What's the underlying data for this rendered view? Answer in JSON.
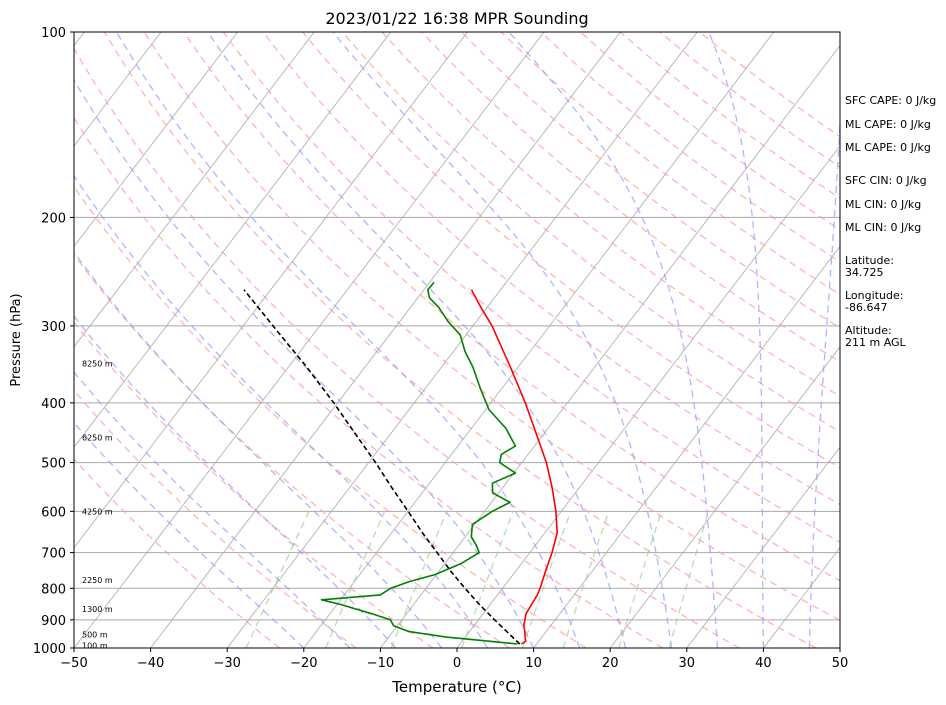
{
  "chart_data": {
    "type": "line",
    "title": "2023/01/22 16:38 MPR Sounding",
    "xlabel": "Temperature (°C)",
    "ylabel": "Pressure (hPa)",
    "xlim": [
      -50,
      50
    ],
    "ylim": [
      1000,
      100
    ],
    "x_scale": "linear",
    "y_scale": "log",
    "skew": true,
    "grid": true,
    "x_ticks": [
      "−50",
      "−40",
      "−30",
      "−20",
      "−10",
      "0",
      "10",
      "20",
      "30",
      "40",
      "50"
    ],
    "y_ticks": [
      "1000",
      "900",
      "800",
      "700",
      "600",
      "500",
      "400",
      "300",
      "200",
      "100"
    ],
    "height_labels": [
      {
        "label": "100 m",
        "pressure": 990
      },
      {
        "label": "500 m",
        "pressure": 950
      },
      {
        "label": "1300 m",
        "pressure": 865
      },
      {
        "label": "2250 m",
        "pressure": 775
      },
      {
        "label": "4250 m",
        "pressure": 600
      },
      {
        "label": "6250 m",
        "pressure": 455
      },
      {
        "label": "8250 m",
        "pressure": 345
      }
    ],
    "series": [
      {
        "color": "#ff0000",
        "values": [
          {
            "p": 985,
            "t": 8.0
          },
          {
            "p": 975,
            "t": 8.3
          },
          {
            "p": 960,
            "t": 7.8
          },
          {
            "p": 940,
            "t": 7.2
          },
          {
            "p": 920,
            "t": 6.5
          },
          {
            "p": 880,
            "t": 5.6
          },
          {
            "p": 850,
            "t": 5.4
          },
          {
            "p": 820,
            "t": 5.2
          },
          {
            "p": 800,
            "t": 4.9
          },
          {
            "p": 750,
            "t": 3.9
          },
          {
            "p": 700,
            "t": 2.9
          },
          {
            "p": 650,
            "t": 1.6
          },
          {
            "p": 600,
            "t": -0.7
          },
          {
            "p": 550,
            "t": -3.5
          },
          {
            "p": 500,
            "t": -6.8
          },
          {
            "p": 450,
            "t": -10.9
          },
          {
            "p": 400,
            "t": -15.5
          },
          {
            "p": 350,
            "t": -21.0
          },
          {
            "p": 300,
            "t": -27.5
          },
          {
            "p": 280,
            "t": -30.8
          },
          {
            "p": 262,
            "t": -33.8
          }
        ]
      },
      {
        "color": "#008000",
        "values": [
          {
            "p": 985,
            "t": 7.5
          },
          {
            "p": 975,
            "t": 3.5
          },
          {
            "p": 960,
            "t": -2.5
          },
          {
            "p": 940,
            "t": -8.0
          },
          {
            "p": 920,
            "t": -10.5
          },
          {
            "p": 900,
            "t": -11.5
          },
          {
            "p": 880,
            "t": -14.5
          },
          {
            "p": 850,
            "t": -19.5
          },
          {
            "p": 835,
            "t": -22.5
          },
          {
            "p": 820,
            "t": -15.3
          },
          {
            "p": 800,
            "t": -14.6
          },
          {
            "p": 780,
            "t": -12.8
          },
          {
            "p": 760,
            "t": -10.2
          },
          {
            "p": 730,
            "t": -7.9
          },
          {
            "p": 700,
            "t": -6.6
          },
          {
            "p": 680,
            "t": -7.8
          },
          {
            "p": 660,
            "t": -9.2
          },
          {
            "p": 630,
            "t": -10.3
          },
          {
            "p": 600,
            "t": -9.0
          },
          {
            "p": 580,
            "t": -7.6
          },
          {
            "p": 560,
            "t": -10.8
          },
          {
            "p": 540,
            "t": -11.8
          },
          {
            "p": 520,
            "t": -9.8
          },
          {
            "p": 500,
            "t": -12.9
          },
          {
            "p": 485,
            "t": -13.5
          },
          {
            "p": 470,
            "t": -12.5
          },
          {
            "p": 440,
            "t": -15.5
          },
          {
            "p": 410,
            "t": -19.6
          },
          {
            "p": 380,
            "t": -22.7
          },
          {
            "p": 350,
            "t": -25.9
          },
          {
            "p": 330,
            "t": -28.5
          },
          {
            "p": 310,
            "t": -30.8
          },
          {
            "p": 295,
            "t": -33.7
          },
          {
            "p": 280,
            "t": -36.3
          },
          {
            "p": 270,
            "t": -38.5
          },
          {
            "p": 262,
            "t": -39.5
          },
          {
            "p": 255,
            "t": -39.4
          }
        ]
      },
      {
        "color": "#000000",
        "dashed": true,
        "values": [
          {
            "p": 985,
            "t": 7.8
          },
          {
            "p": 950,
            "t": 5.5
          },
          {
            "p": 900,
            "t": 2.1
          },
          {
            "p": 850,
            "t": -1.4
          },
          {
            "p": 800,
            "t": -4.9
          },
          {
            "p": 750,
            "t": -8.5
          },
          {
            "p": 700,
            "t": -12.1
          },
          {
            "p": 650,
            "t": -16.0
          },
          {
            "p": 600,
            "t": -20.0
          },
          {
            "p": 550,
            "t": -24.4
          },
          {
            "p": 500,
            "t": -29.1
          },
          {
            "p": 450,
            "t": -34.5
          },
          {
            "p": 400,
            "t": -40.5
          },
          {
            "p": 350,
            "t": -47.6
          },
          {
            "p": 300,
            "t": -56.1
          },
          {
            "p": 262,
            "t": -63.5
          }
        ]
      }
    ],
    "background_lines": {
      "isotherm_color": "#a9a9a9",
      "dry_adiabat_color": "#ff9999",
      "moist_adiabat_color": "#9999ff",
      "mixing_ratio_color": "#99cc99"
    }
  },
  "indices": [
    {
      "text": "SFC CAPE: 0 J/kg"
    },
    {
      "text": "ML CAPE: 0 J/kg"
    },
    {
      "text": "ML CAPE: 0 J/kg"
    },
    {
      "text": "SFC CIN: 0 J/kg"
    },
    {
      "text": "ML CIN: 0 J/kg"
    },
    {
      "text": "ML CIN: 0 J/kg"
    }
  ],
  "location": {
    "latitude_label": "Latitude:",
    "latitude_value": "34.725",
    "longitude_label": "Longitude:",
    "longitude_value": "-86.647",
    "altitude_label": "Altitude:",
    "altitude_value": "211 m AGL"
  }
}
